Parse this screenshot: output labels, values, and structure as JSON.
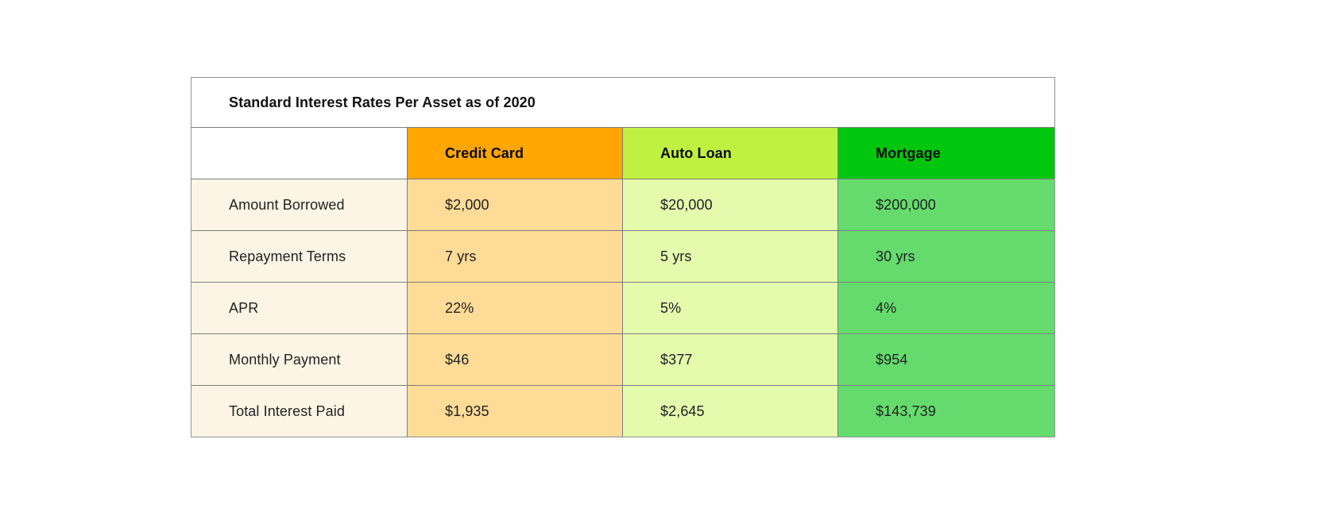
{
  "chart_data": {
    "type": "table",
    "title": "Standard Interest Rates Per Asset as of 2020",
    "columns": [
      "Credit Card",
      "Auto Loan",
      "Mortgage"
    ],
    "rows": [
      {
        "label": "Amount Borrowed",
        "values": [
          "$2,000",
          "$20,000",
          "$200,000"
        ]
      },
      {
        "label": "Repayment Terms",
        "values": [
          "7 yrs",
          "5 yrs",
          "30 yrs"
        ]
      },
      {
        "label": "APR",
        "values": [
          "22%",
          "5%",
          "4%"
        ]
      },
      {
        "label": "Monthly Payment",
        "values": [
          "$46",
          "$377",
          "$954"
        ]
      },
      {
        "label": "Total Interest Paid",
        "values": [
          "$1,935",
          "$2,645",
          "$143,739"
        ]
      }
    ]
  },
  "colors": {
    "credit_card_header": "#FFA600",
    "credit_card_cell": "#FEDB96",
    "auto_loan_header": "#BFF141",
    "auto_loan_cell": "#E4FAAD",
    "mortgage_header": "#00C70D",
    "mortgage_cell": "#65DB6D",
    "label_column": "#FCF5E5",
    "title_background": "#FFFFFF",
    "border": "#7D7D7D"
  }
}
